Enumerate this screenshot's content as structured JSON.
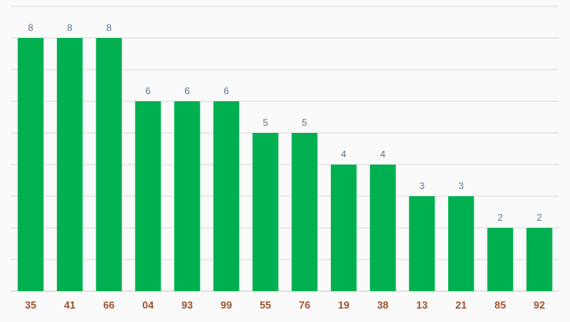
{
  "chart_data": {
    "type": "bar",
    "categories": [
      "35",
      "41",
      "66",
      "04",
      "93",
      "99",
      "55",
      "76",
      "19",
      "38",
      "13",
      "21",
      "85",
      "92"
    ],
    "values": [
      8,
      8,
      8,
      6,
      6,
      6,
      5,
      5,
      4,
      4,
      3,
      3,
      2,
      2
    ],
    "ylim": [
      0,
      9
    ],
    "grid": true,
    "legend": "none",
    "bar_color": "#00b050",
    "data_label_color": "#5b7590",
    "tick_label_color": "#a0522d"
  }
}
